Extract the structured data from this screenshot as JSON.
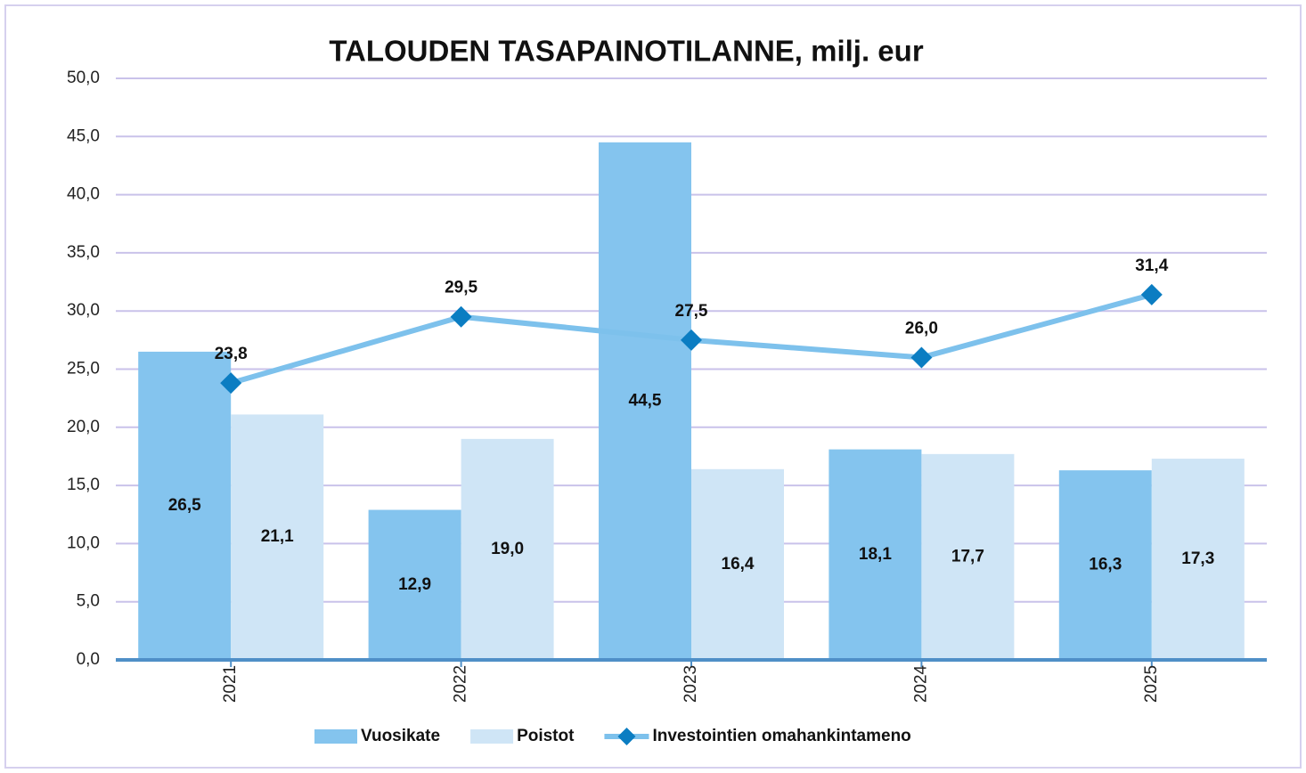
{
  "chart_data": {
    "type": "bar",
    "title": "TALOUDEN TASAPAINOTILANNE, milj. eur",
    "categories": [
      "2021",
      "2022",
      "2023",
      "2024",
      "2025"
    ],
    "series": [
      {
        "name": "Vuosikate",
        "type": "bar",
        "color": "#84c4ee",
        "values": [
          26.5,
          12.9,
          44.5,
          18.1,
          16.3
        ],
        "value_labels": [
          "26,5",
          "12,9",
          "44,5",
          "18,1",
          "16,3"
        ]
      },
      {
        "name": "Poistot",
        "type": "bar",
        "color": "#cfe5f6",
        "values": [
          21.1,
          19.0,
          16.4,
          17.7,
          17.3
        ],
        "value_labels": [
          "21,1",
          "19,0",
          "16,4",
          "17,7",
          "17,3"
        ]
      },
      {
        "name": "Investointien omahankintameno",
        "type": "line",
        "color": "#7dc1ec",
        "marker_color": "#0b7dc2",
        "values": [
          23.8,
          29.5,
          27.5,
          26.0,
          31.4
        ],
        "value_labels": [
          "23,8",
          "29,5",
          "27,5",
          "26,0",
          "31,4"
        ]
      }
    ],
    "ylim": [
      0,
      50
    ],
    "yticks": [
      {
        "value": 0,
        "label": "0,0"
      },
      {
        "value": 5,
        "label": "5,0"
      },
      {
        "value": 10,
        "label": "10,0"
      },
      {
        "value": 15,
        "label": "15,0"
      },
      {
        "value": 20,
        "label": "20,0"
      },
      {
        "value": 25,
        "label": "25,0"
      },
      {
        "value": 30,
        "label": "30,0"
      },
      {
        "value": 35,
        "label": "35,0"
      },
      {
        "value": 40,
        "label": "40,0"
      },
      {
        "value": 45,
        "label": "45,0"
      },
      {
        "value": 50,
        "label": "50,0"
      }
    ],
    "grid": true
  }
}
